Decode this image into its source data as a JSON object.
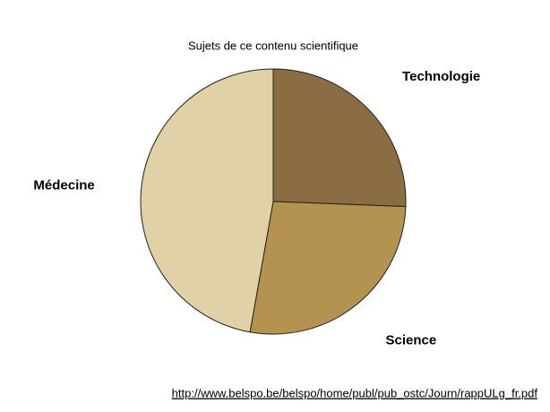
{
  "chart_data": {
    "type": "pie",
    "title": "Sujets de ce contenu scientifique",
    "categories": [
      "Technologie",
      "Science",
      "Médecine"
    ],
    "values": [
      25.6,
      27.2,
      47.2
    ],
    "colors": [
      "#8b6d44",
      "#b4924f",
      "#e0d1a6"
    ]
  },
  "source": "http://www.belspo.be/belspo/home/publ/pub_ostc/Journ/rappULg_fr.pdf"
}
